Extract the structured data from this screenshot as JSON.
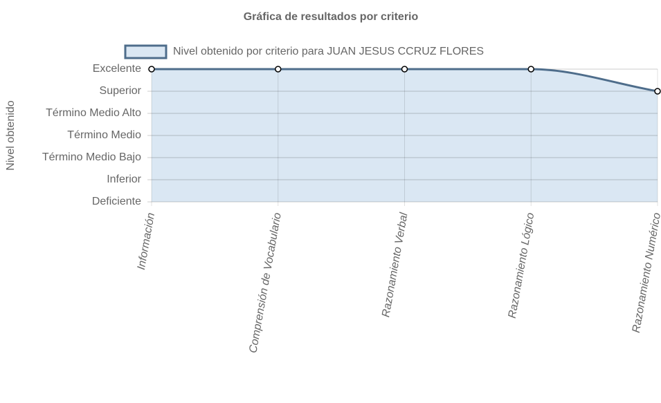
{
  "chart_data": {
    "type": "line",
    "title": "Gráfica de resultados por criterio",
    "y_label": "Nivel obtenido",
    "categories": [
      "Información",
      "Comprensión de Vocabulario",
      "Razonamiento Verbal",
      "Razonamiento Lógico",
      "Razonamiento Numérico"
    ],
    "series": [
      {
        "name": "Nivel obtenido por criterio para JUAN JESUS CCRUZ FLORES",
        "color": "#4e6d8b",
        "fill_color": "#dae7f3",
        "values": [
          6,
          6,
          6,
          6,
          5
        ]
      }
    ],
    "ylim": [
      0,
      6
    ],
    "yticks": [
      {
        "value": 0,
        "label": "Deficiente"
      },
      {
        "value": 1,
        "label": "Inferior"
      },
      {
        "value": 2,
        "label": "Término Medio Bajo"
      },
      {
        "value": 3,
        "label": "Término Medio"
      },
      {
        "value": 4,
        "label": "Término Medio Alto"
      },
      {
        "value": 5,
        "label": "Superior"
      },
      {
        "value": 6,
        "label": "Excelente"
      }
    ],
    "grid": true,
    "legend": "top"
  }
}
